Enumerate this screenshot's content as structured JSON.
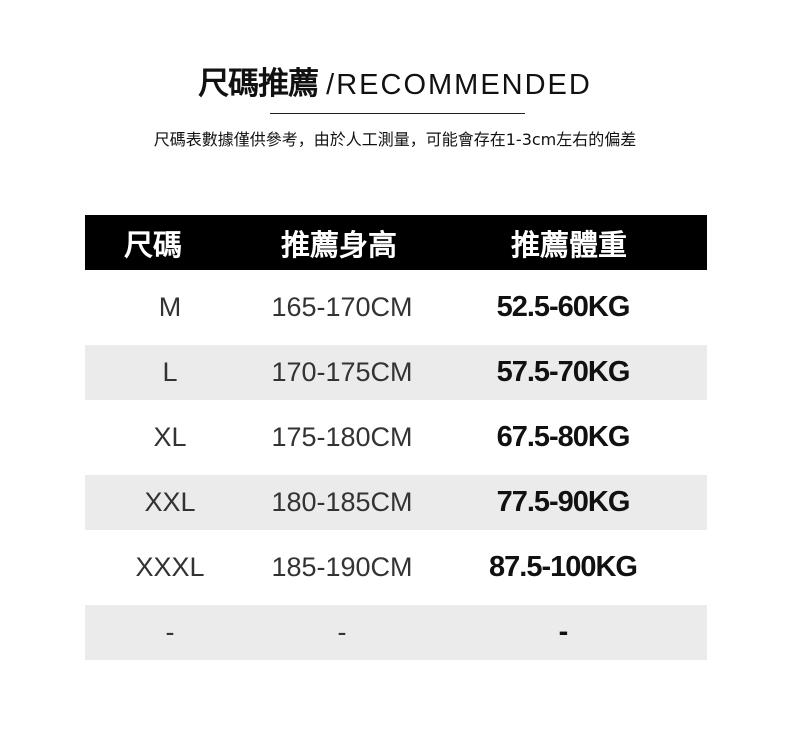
{
  "header": {
    "title_zh": "尺碼推薦",
    "title_en": "/RECOMMENDED",
    "subtitle": "尺碼表數據僅供參考，由於人工測量，可能會存在1-3cm左右的偏差"
  },
  "table": {
    "columns": [
      "尺碼",
      "推薦身高",
      "推薦體重"
    ],
    "rows": [
      [
        "M",
        "165-170CM",
        "52.5-60KG"
      ],
      [
        "L",
        "170-175CM",
        "57.5-70KG"
      ],
      [
        "XL",
        "175-180CM",
        "67.5-80KG"
      ],
      [
        "XXL",
        "180-185CM",
        "77.5-90KG"
      ],
      [
        "XXXL",
        "185-190CM",
        "87.5-100KG"
      ],
      [
        "-",
        "-",
        "-"
      ]
    ],
    "header_color": "#000000",
    "stripe_color": "#ebebeb"
  }
}
